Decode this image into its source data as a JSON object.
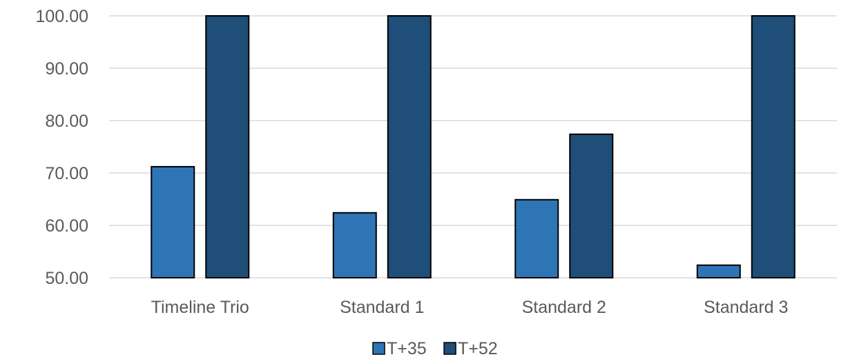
{
  "chart_data": {
    "type": "bar",
    "categories": [
      "Timeline Trio",
      "Standard 1",
      "Standard 2",
      "Standard 3"
    ],
    "series": [
      {
        "name": "T+35",
        "color": "#2e75b6",
        "values": [
          71.2,
          62.4,
          64.9,
          52.4
        ]
      },
      {
        "name": "T+52",
        "color": "#1f4e79",
        "values": [
          100.0,
          100.0,
          77.4,
          100.0
        ]
      }
    ],
    "ylim": [
      50,
      100
    ],
    "yticks": [
      "50.00",
      "60.00",
      "70.00",
      "80.00",
      "90.00",
      "100.00"
    ],
    "title": "",
    "xlabel": "",
    "ylabel": "",
    "grid": "horizontal",
    "legend": "bottom-center"
  }
}
